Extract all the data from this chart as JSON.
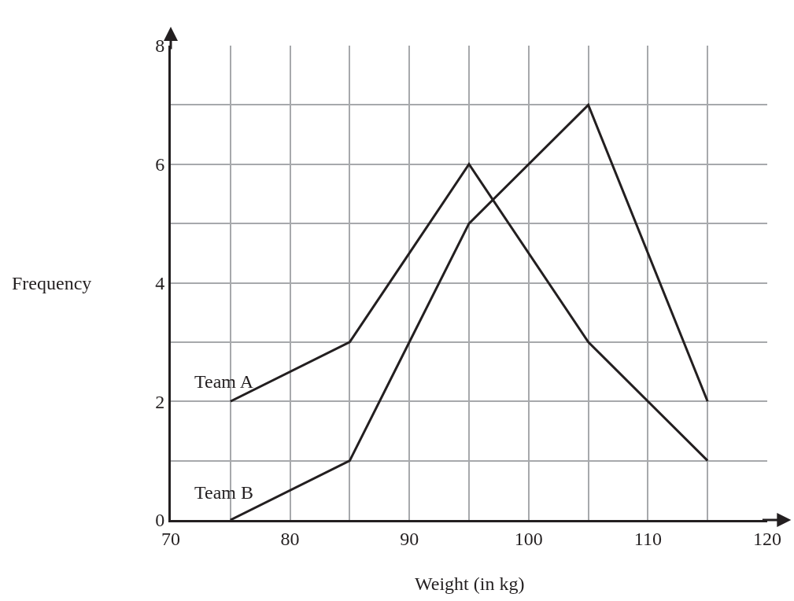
{
  "chart_data": {
    "type": "line",
    "xlabel": "Weight (in kg)",
    "ylabel": "Frequency",
    "x": [
      75,
      85,
      95,
      105,
      115
    ],
    "series": [
      {
        "name": "Team A",
        "color": "#231f20",
        "values": [
          2,
          3,
          6,
          3,
          1
        ]
      },
      {
        "name": "Team B",
        "color": "#231f20",
        "values": [
          0,
          1,
          5,
          7,
          2
        ]
      }
    ],
    "xlim": [
      70,
      120
    ],
    "ylim": [
      0,
      8
    ],
    "xticks": [
      70,
      {
        "value": 75,
        "label": null
      },
      80,
      {
        "value": 85,
        "label": null
      },
      90,
      {
        "value": 95,
        "label": null
      },
      100,
      {
        "value": 105,
        "label": null
      },
      110,
      {
        "value": 115,
        "label": null
      },
      120
    ],
    "yticks": [
      0,
      {
        "value": 1,
        "label": null
      },
      2,
      {
        "value": 3,
        "label": null
      },
      4,
      {
        "value": 5,
        "label": null
      },
      6,
      {
        "value": 7,
        "label": null
      },
      8
    ],
    "grid": true,
    "legend": false,
    "marker": "none",
    "line_style": "solid"
  }
}
